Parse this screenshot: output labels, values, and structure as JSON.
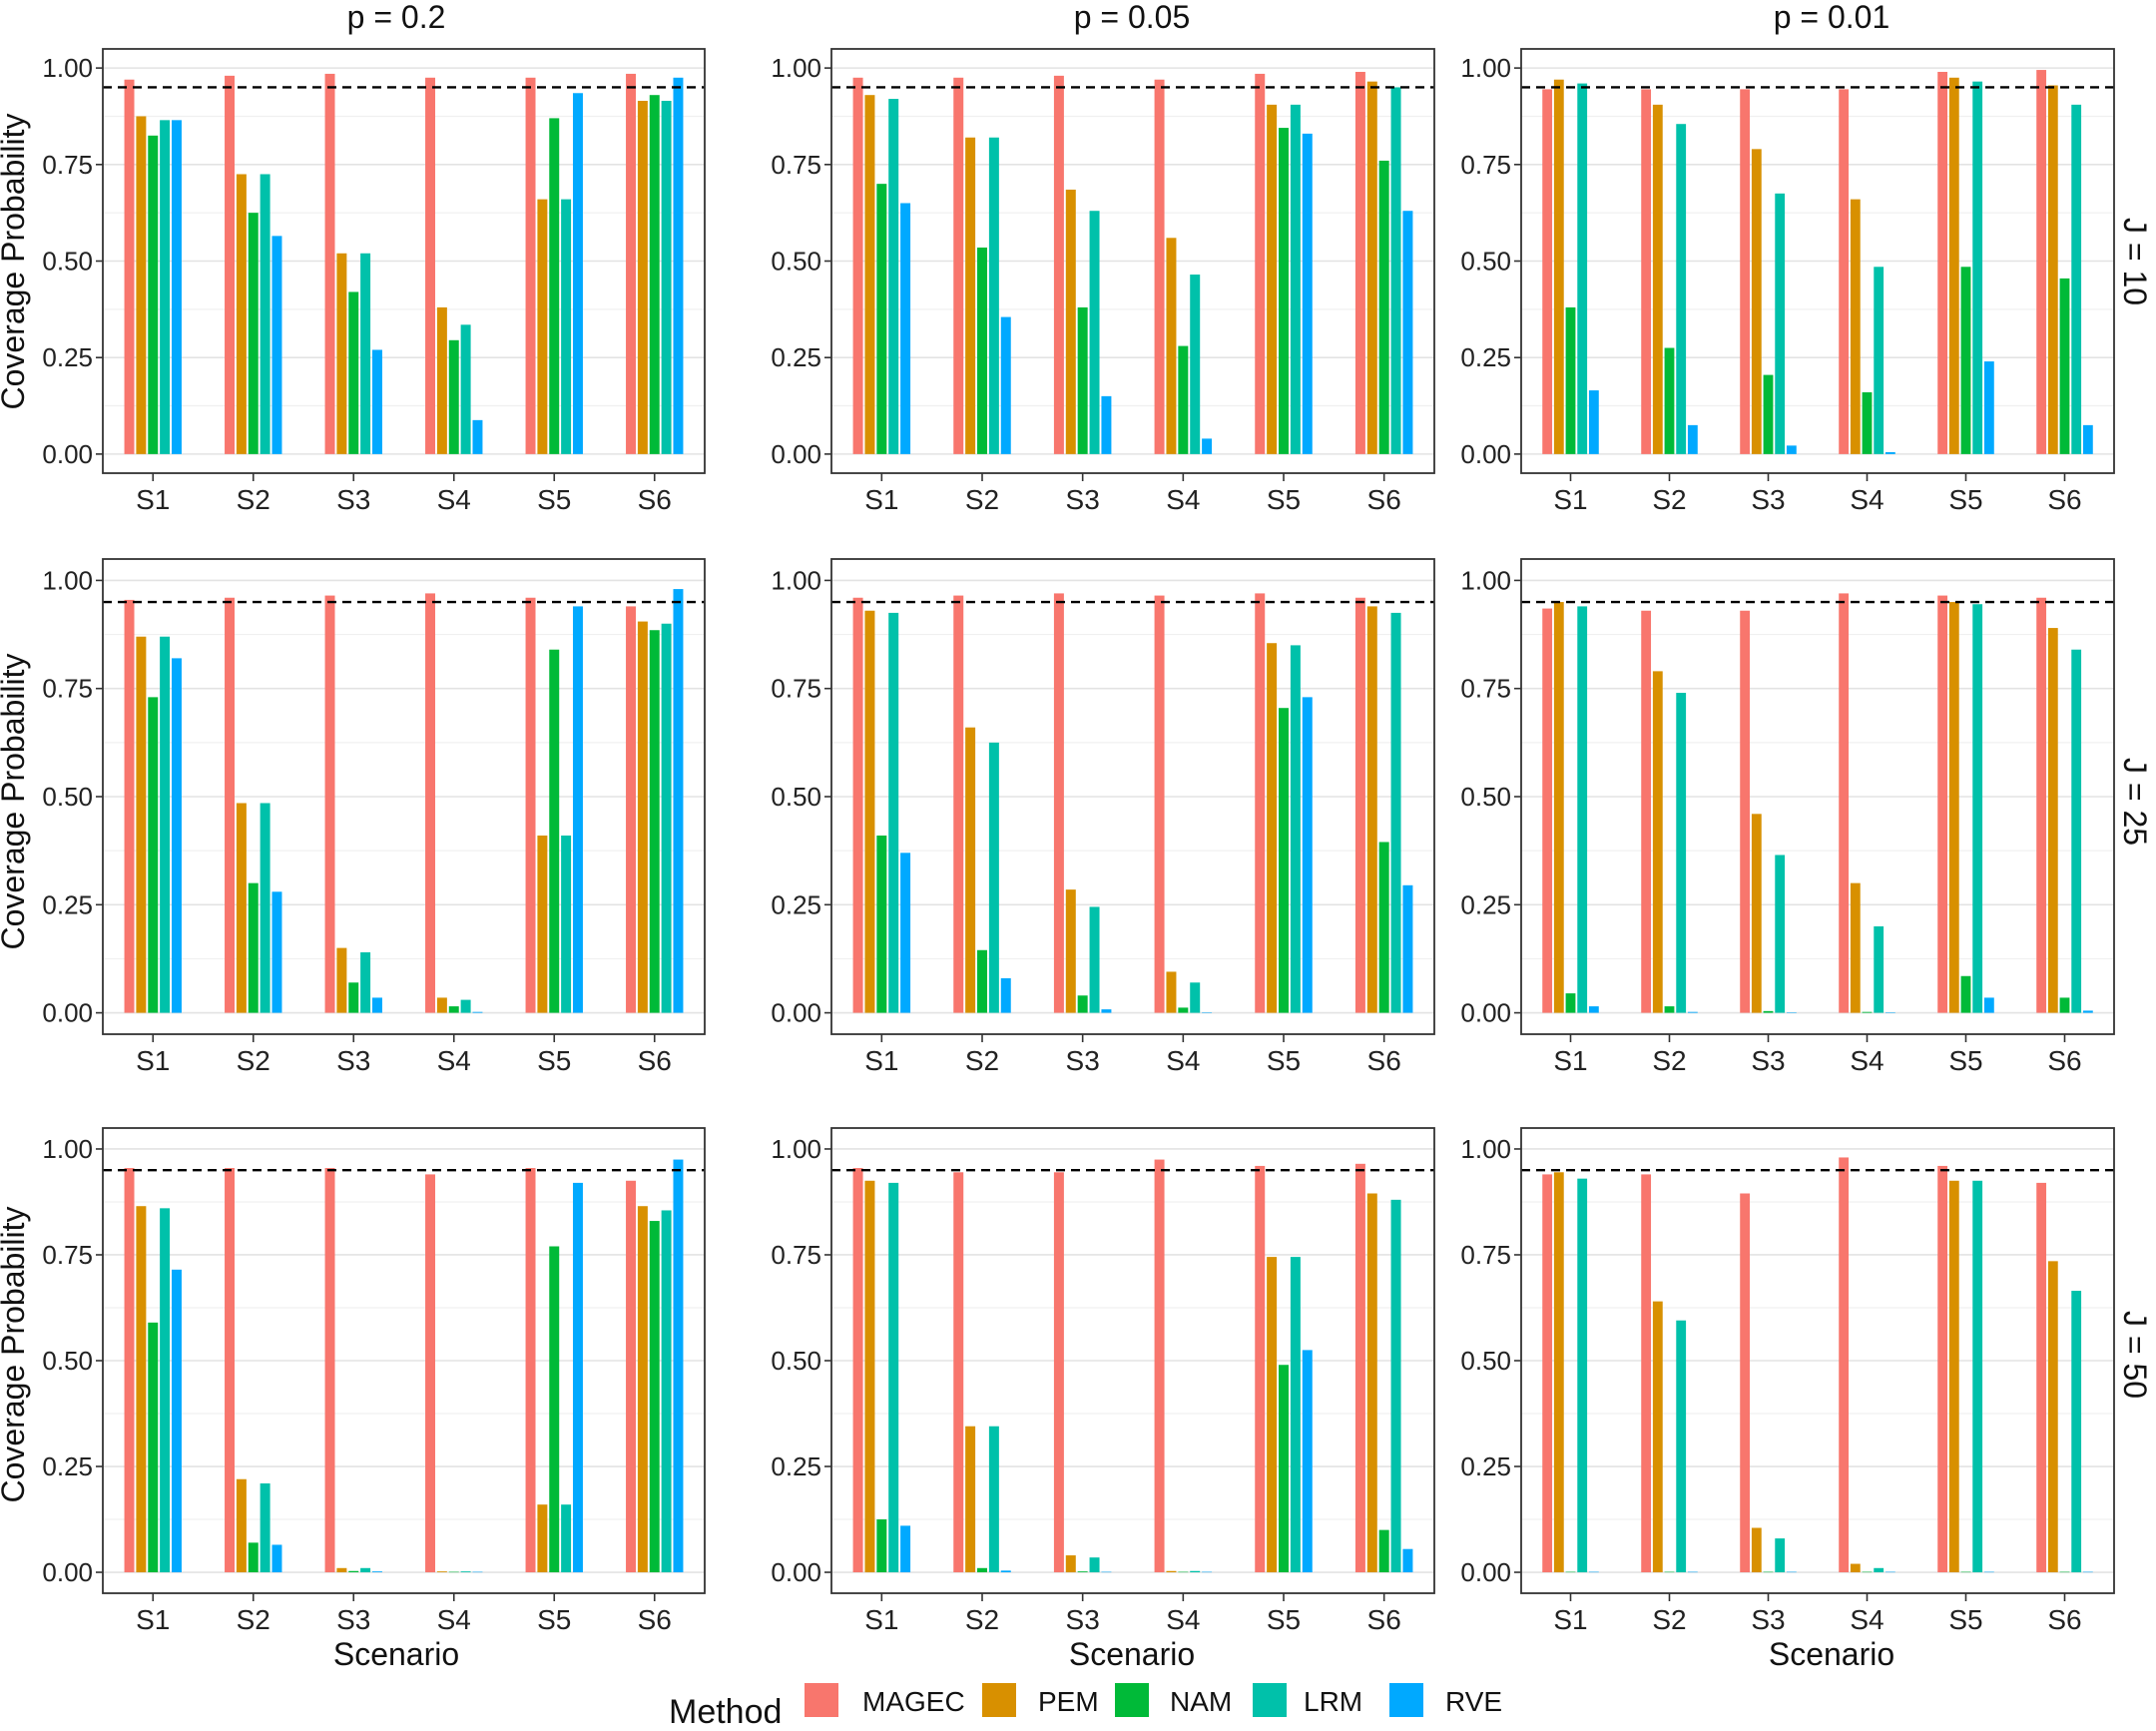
{
  "chart_data": {
    "type": "bar",
    "ylabel": "Coverage Probability",
    "xlabel": "Scenario",
    "ylim": [
      0,
      1
    ],
    "yticks": [
      "0.00",
      "0.25",
      "0.50",
      "0.75",
      "1.00"
    ],
    "reference_line": 0.95,
    "categories": [
      "S1",
      "S2",
      "S3",
      "S4",
      "S5",
      "S6"
    ],
    "legend": {
      "title": "Method",
      "position": "bottom",
      "items": [
        {
          "name": "MAGEC",
          "color": "#F8766D"
        },
        {
          "name": "PEM",
          "color": "#D89000"
        },
        {
          "name": "NAM",
          "color": "#00BA38"
        },
        {
          "name": "LRM",
          "color": "#00C1AA"
        },
        {
          "name": "RVE",
          "color": "#00A9FF"
        }
      ]
    },
    "col_labels": [
      "p = 0.2",
      "p = 0.05",
      "p = 0.01"
    ],
    "row_labels": [
      "J = 10",
      "J = 25",
      "J = 50"
    ],
    "panels": [
      {
        "row": 0,
        "col": 0,
        "values": [
          [
            0.97,
            0.98,
            0.985,
            0.975,
            0.975,
            0.985
          ],
          [
            0.875,
            0.725,
            0.52,
            0.38,
            0.66,
            0.915
          ],
          [
            0.825,
            0.625,
            0.42,
            0.295,
            0.87,
            0.93
          ],
          [
            0.865,
            0.725,
            0.52,
            0.335,
            0.66,
            0.915
          ],
          [
            0.865,
            0.565,
            0.27,
            0.088,
            0.935,
            0.975
          ]
        ]
      },
      {
        "row": 0,
        "col": 1,
        "values": [
          [
            0.975,
            0.975,
            0.98,
            0.97,
            0.985,
            0.99
          ],
          [
            0.93,
            0.82,
            0.685,
            0.56,
            0.905,
            0.965
          ],
          [
            0.7,
            0.535,
            0.38,
            0.28,
            0.845,
            0.76
          ],
          [
            0.92,
            0.82,
            0.63,
            0.465,
            0.905,
            0.95
          ],
          [
            0.65,
            0.355,
            0.15,
            0.04,
            0.83,
            0.63
          ]
        ]
      },
      {
        "row": 0,
        "col": 2,
        "values": [
          [
            0.945,
            0.945,
            0.945,
            0.945,
            0.99,
            0.995
          ],
          [
            0.97,
            0.905,
            0.79,
            0.66,
            0.975,
            0.955
          ],
          [
            0.38,
            0.275,
            0.205,
            0.16,
            0.485,
            0.455
          ],
          [
            0.96,
            0.855,
            0.675,
            0.485,
            0.965,
            0.905
          ],
          [
            0.165,
            0.075,
            0.022,
            0.005,
            0.24,
            0.075
          ]
        ]
      },
      {
        "row": 1,
        "col": 0,
        "values": [
          [
            0.955,
            0.96,
            0.965,
            0.97,
            0.96,
            0.94
          ],
          [
            0.87,
            0.485,
            0.15,
            0.035,
            0.41,
            0.905
          ],
          [
            0.73,
            0.3,
            0.07,
            0.015,
            0.84,
            0.885
          ],
          [
            0.87,
            0.485,
            0.14,
            0.03,
            0.41,
            0.9
          ],
          [
            0.82,
            0.28,
            0.035,
            0.002,
            0.94,
            0.98
          ]
        ]
      },
      {
        "row": 1,
        "col": 1,
        "values": [
          [
            0.96,
            0.965,
            0.97,
            0.965,
            0.97,
            0.96
          ],
          [
            0.93,
            0.66,
            0.285,
            0.095,
            0.855,
            0.94
          ],
          [
            0.41,
            0.145,
            0.04,
            0.012,
            0.705,
            0.395
          ],
          [
            0.925,
            0.625,
            0.245,
            0.07,
            0.85,
            0.925
          ],
          [
            0.37,
            0.08,
            0.008,
            0.001,
            0.73,
            0.295
          ]
        ]
      },
      {
        "row": 1,
        "col": 2,
        "values": [
          [
            0.935,
            0.93,
            0.93,
            0.97,
            0.965,
            0.96
          ],
          [
            0.95,
            0.79,
            0.46,
            0.3,
            0.95,
            0.89
          ],
          [
            0.045,
            0.015,
            0.004,
            0.002,
            0.085,
            0.035
          ],
          [
            0.94,
            0.74,
            0.365,
            0.2,
            0.945,
            0.84
          ],
          [
            0.015,
            0.002,
            0.001,
            0.001,
            0.035,
            0.005
          ]
        ]
      },
      {
        "row": 2,
        "col": 0,
        "values": [
          [
            0.955,
            0.955,
            0.955,
            0.94,
            0.955,
            0.925
          ],
          [
            0.865,
            0.22,
            0.01,
            0.002,
            0.16,
            0.865
          ],
          [
            0.59,
            0.07,
            0.003,
            0.001,
            0.77,
            0.83
          ],
          [
            0.86,
            0.21,
            0.01,
            0.002,
            0.16,
            0.855
          ],
          [
            0.715,
            0.065,
            0.002,
            0.001,
            0.92,
            0.975
          ]
        ]
      },
      {
        "row": 2,
        "col": 1,
        "values": [
          [
            0.955,
            0.945,
            0.945,
            0.975,
            0.96,
            0.965
          ],
          [
            0.925,
            0.345,
            0.04,
            0.003,
            0.745,
            0.895
          ],
          [
            0.125,
            0.01,
            0.002,
            0.001,
            0.49,
            0.1
          ],
          [
            0.92,
            0.345,
            0.035,
            0.003,
            0.745,
            0.88
          ],
          [
            0.11,
            0.004,
            0.001,
            0.001,
            0.525,
            0.055
          ]
        ]
      },
      {
        "row": 2,
        "col": 2,
        "values": [
          [
            0.94,
            0.94,
            0.895,
            0.98,
            0.96,
            0.92
          ],
          [
            0.945,
            0.64,
            0.105,
            0.02,
            0.925,
            0.735
          ],
          [
            0.001,
            0.001,
            0.001,
            0.001,
            0.001,
            0.001
          ],
          [
            0.93,
            0.595,
            0.08,
            0.01,
            0.925,
            0.665
          ],
          [
            0.001,
            0.001,
            0.001,
            0.001,
            0.001,
            0.001
          ]
        ]
      }
    ]
  }
}
